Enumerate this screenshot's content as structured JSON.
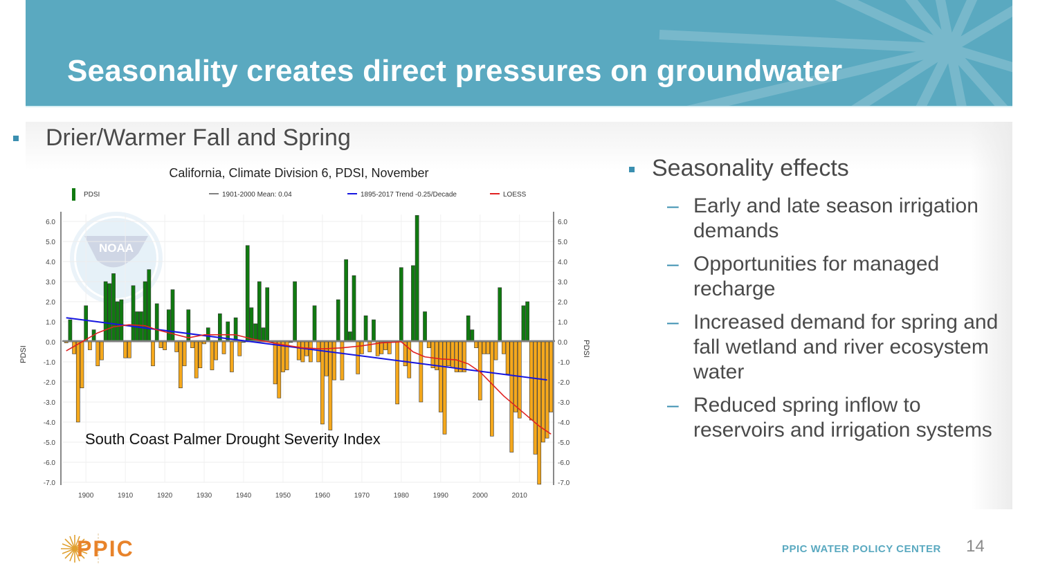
{
  "slide": {
    "title": "Seasonality creates direct pressures on groundwater",
    "left_bullet": "Drier/Warmer Fall and Spring",
    "right_bullet": {
      "heading": "Seasonality effects",
      "items": [
        "Early and late season irrigation demands",
        "Opportunities for managed recharge",
        "Increased demand for spring and fall wetland and river ecosystem water",
        "Reduced spring inflow to reservoirs and irrigation systems"
      ]
    },
    "chart_caption": "South Coast Palmer Drought Severity Index",
    "watermark": "NOAA",
    "dash_glyph": "–"
  },
  "footer": {
    "logo_text": "PPIC",
    "center_text": "PPIC WATER POLICY CENTER",
    "page_number": "14"
  },
  "colors": {
    "title_bar": "#5aa9c0",
    "bullet": "#3b8fb0",
    "positive_bar": "#107a10",
    "negative_bar": "#f5a81c",
    "mean_line": "#808080",
    "trend_line": "#1515e0",
    "loess_line": "#e02020",
    "ppic_orange": "#e8832a"
  },
  "chart_data": {
    "type": "bar",
    "title": "California, Climate Division 6, PDSI, November",
    "xlabel": "",
    "ylabel": "PDSI",
    "ylabel_right": "PDSI",
    "ylim": [
      -7.0,
      6.0
    ],
    "yticks": [
      "6.0",
      "5.0",
      "4.0",
      "3.0",
      "2.0",
      "1.0",
      "0.0",
      "-1.0",
      "-2.0",
      "-3.0",
      "-4.0",
      "-5.0",
      "-6.0",
      "-7.0"
    ],
    "ytick_values": [
      6,
      5,
      4,
      3,
      2,
      1,
      0,
      -1,
      -2,
      -3,
      -4,
      -5,
      -6,
      -7
    ],
    "xticks": [
      "1900",
      "1910",
      "1920",
      "1930",
      "1940",
      "1950",
      "1960",
      "1970",
      "1980",
      "1990",
      "2000",
      "2010"
    ],
    "xtick_values": [
      1900,
      1910,
      1920,
      1930,
      1940,
      1950,
      1960,
      1970,
      1980,
      1990,
      2000,
      2010
    ],
    "xlim": [
      1894,
      2019
    ],
    "grid": true,
    "legend": [
      {
        "label": "PDSI",
        "kind": "bar"
      },
      {
        "label": "1901-2000 Mean: 0.04",
        "kind": "mean"
      },
      {
        "label": "1895-2017 Trend -0.25/Decade",
        "kind": "trend"
      },
      {
        "label": "LOESS",
        "kind": "loess"
      }
    ],
    "legend_position": "top",
    "years": [
      1895,
      1896,
      1897,
      1898,
      1899,
      1900,
      1901,
      1902,
      1903,
      1904,
      1905,
      1906,
      1907,
      1908,
      1909,
      1910,
      1911,
      1912,
      1913,
      1914,
      1915,
      1916,
      1917,
      1918,
      1919,
      1920,
      1921,
      1922,
      1923,
      1924,
      1925,
      1926,
      1927,
      1928,
      1929,
      1930,
      1931,
      1932,
      1933,
      1934,
      1935,
      1936,
      1937,
      1938,
      1939,
      1940,
      1941,
      1942,
      1943,
      1944,
      1945,
      1946,
      1947,
      1948,
      1949,
      1950,
      1951,
      1952,
      1953,
      1954,
      1955,
      1956,
      1957,
      1958,
      1959,
      1960,
      1961,
      1962,
      1963,
      1964,
      1965,
      1966,
      1967,
      1968,
      1969,
      1970,
      1971,
      1972,
      1973,
      1974,
      1975,
      1976,
      1977,
      1978,
      1979,
      1980,
      1981,
      1982,
      1983,
      1984,
      1985,
      1986,
      1987,
      1988,
      1989,
      1990,
      1991,
      1992,
      1993,
      1994,
      1995,
      1996,
      1997,
      1998,
      1999,
      2000,
      2001,
      2002,
      2003,
      2004,
      2005,
      2006,
      2007,
      2008,
      2009,
      2010,
      2011,
      2012,
      2013,
      2014,
      2015,
      2016,
      2017,
      2018
    ],
    "values": [
      -0.05,
      1.1,
      -0.6,
      -4.0,
      -2.3,
      1.8,
      -0.4,
      0.6,
      -1.2,
      -0.9,
      3.0,
      2.9,
      3.4,
      2.0,
      2.1,
      -0.8,
      -0.8,
      2.8,
      1.5,
      1.5,
      3.0,
      3.6,
      -1.2,
      1.9,
      -0.3,
      -0.4,
      1.6,
      2.6,
      -0.5,
      -2.3,
      -1.2,
      1.6,
      -0.3,
      -1.8,
      -1.3,
      -0.1,
      0.7,
      -1.4,
      -0.9,
      1.4,
      -0.6,
      1.0,
      -1.5,
      1.2,
      -0.7,
      0.0,
      4.8,
      1.7,
      0.9,
      3.0,
      0.7,
      2.7,
      0.0,
      -2.1,
      -2.8,
      -1.5,
      -1.4,
      0.0,
      3.0,
      -0.9,
      -1.0,
      -0.7,
      -1.0,
      1.8,
      -1.0,
      -4.1,
      -1.7,
      -4.4,
      -1.9,
      2.1,
      -1.9,
      4.1,
      0.5,
      3.3,
      -1.6,
      -0.6,
      1.3,
      -0.5,
      1.1,
      -0.7,
      -0.6,
      -0.4,
      -0.6,
      0.0,
      -3.1,
      3.7,
      -1.2,
      -1.8,
      3.8,
      6.3,
      -3.0,
      1.5,
      -0.3,
      -1.3,
      -1.4,
      -3.5,
      -4.6,
      -1.2,
      -1.3,
      -1.5,
      -1.5,
      -1.5,
      1.3,
      0.6,
      -0.3,
      -2.9,
      -0.6,
      -0.6,
      -4.7,
      -0.9,
      2.7,
      -0.6,
      -1.6,
      -5.5,
      -3.5,
      -3.8,
      1.8,
      2.0,
      -3.9,
      -5.6,
      -7.1,
      -5.0,
      -4.8,
      -3.5
    ],
    "mean": 0.04,
    "trend": {
      "start_year": 1895,
      "start_value": 1.2,
      "end_year": 2017,
      "end_value": -1.9,
      "rate_per_decade": -0.25
    },
    "loess": {
      "years": [
        1895,
        1899,
        1903,
        1907,
        1911,
        1915,
        1918,
        1922,
        1926,
        1930,
        1934,
        1938,
        1942,
        1946,
        1950,
        1955,
        1960,
        1965,
        1970,
        1975,
        1980,
        1983,
        1986,
        1990,
        1994,
        1997,
        2000,
        2003,
        2006,
        2009,
        2012,
        2015,
        2018
      ],
      "values": [
        -0.45,
        0.0,
        0.45,
        0.75,
        0.85,
        0.8,
        0.6,
        0.4,
        0.2,
        0.35,
        0.35,
        0.35,
        0.15,
        0.0,
        -0.15,
        -0.3,
        -0.35,
        -0.3,
        -0.2,
        -0.05,
        0.0,
        -0.5,
        -0.75,
        -0.85,
        -0.9,
        -1.1,
        -1.5,
        -2.1,
        -2.7,
        -3.2,
        -3.7,
        -4.2,
        -4.6
      ]
    }
  }
}
